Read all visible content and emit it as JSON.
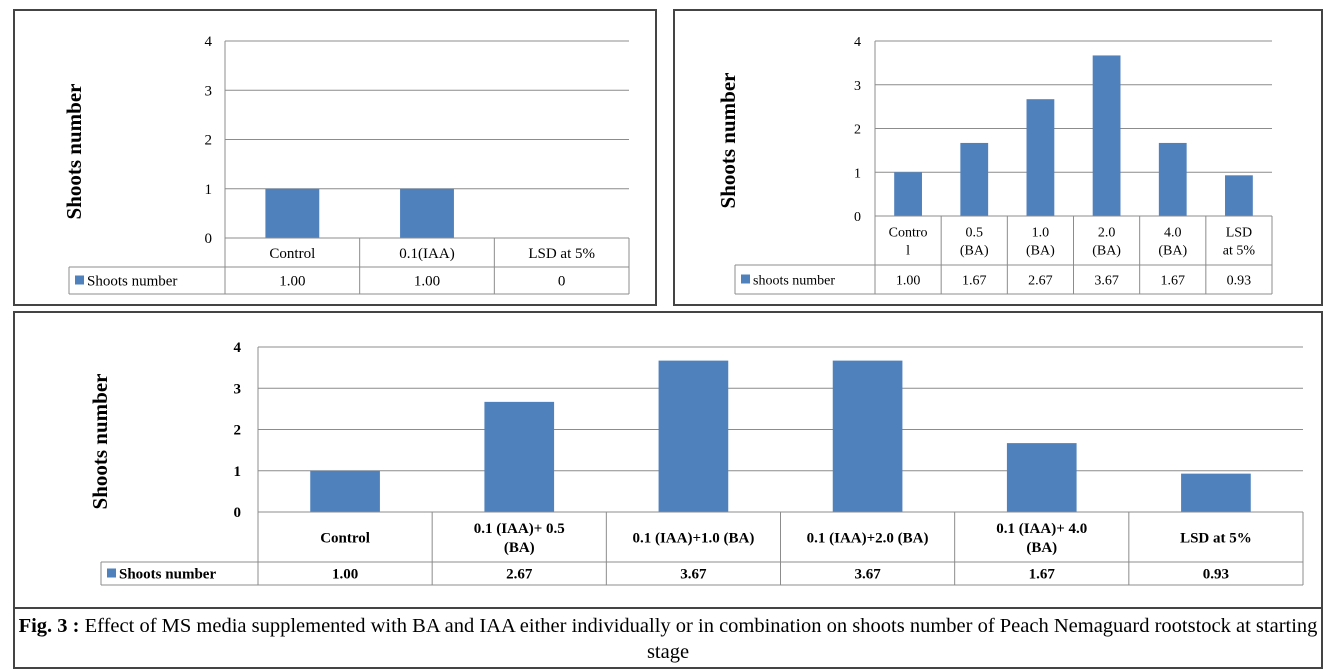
{
  "chart_data": [
    {
      "type": "bar",
      "ylabel": "Shoots number",
      "ylim": [
        0,
        4
      ],
      "yticks": [
        "0",
        "1",
        "2",
        "3",
        "4"
      ],
      "grid": true,
      "bar_color": "#4f81bd",
      "categories": [
        [
          "Control"
        ],
        [
          "0.1(IAA)"
        ],
        [
          "LSD at 5%"
        ]
      ],
      "series": [
        {
          "name": "Shoots number",
          "values": [
            1.0,
            1.0,
            0
          ]
        }
      ],
      "table_values": [
        "1.00",
        "1.00",
        "0"
      ]
    },
    {
      "type": "bar",
      "ylabel": "Shoots number",
      "ylim": [
        0,
        4
      ],
      "yticks": [
        "0",
        "1",
        "2",
        "3",
        "4"
      ],
      "grid": true,
      "bar_color": "#4f81bd",
      "categories": [
        [
          "Contro",
          "l"
        ],
        [
          "0.5",
          "(BA)"
        ],
        [
          "1.0",
          "(BA)"
        ],
        [
          "2.0",
          "(BA)"
        ],
        [
          "4.0",
          "(BA)"
        ],
        [
          "LSD",
          "at 5%"
        ]
      ],
      "series": [
        {
          "name": "shoots number",
          "values": [
            1.0,
            1.67,
            2.67,
            3.67,
            1.67,
            0.93
          ]
        }
      ],
      "table_values": [
        "1.00",
        "1.67",
        "2.67",
        "3.67",
        "1.67",
        "0.93"
      ]
    },
    {
      "type": "bar",
      "ylabel": "Shoots number",
      "ylim": [
        0,
        4
      ],
      "yticks": [
        "0",
        "1",
        "2",
        "3",
        "4"
      ],
      "grid": true,
      "bar_color": "#4f81bd",
      "categories": [
        [
          "Control"
        ],
        [
          "0.1 (IAA)+ 0.5",
          "(BA)"
        ],
        [
          "0.1 (IAA)+1.0 (BA)"
        ],
        [
          "0.1 (IAA)+2.0 (BA)"
        ],
        [
          "0.1 (IAA)+ 4.0",
          "(BA)"
        ],
        [
          "LSD at 5%"
        ]
      ],
      "series": [
        {
          "name": "Shoots number",
          "values": [
            1.0,
            2.67,
            3.67,
            3.67,
            1.67,
            0.93
          ]
        }
      ],
      "table_values": [
        "1.00",
        "2.67",
        "3.67",
        "3.67",
        "1.67",
        "0.93"
      ]
    }
  ],
  "caption": {
    "label": "Fig. 3 :",
    "text": " Effect of MS media supplemented with BA and IAA either individually or in combination on shoots number of Peach Nemaguard rootstock at starting stage"
  }
}
